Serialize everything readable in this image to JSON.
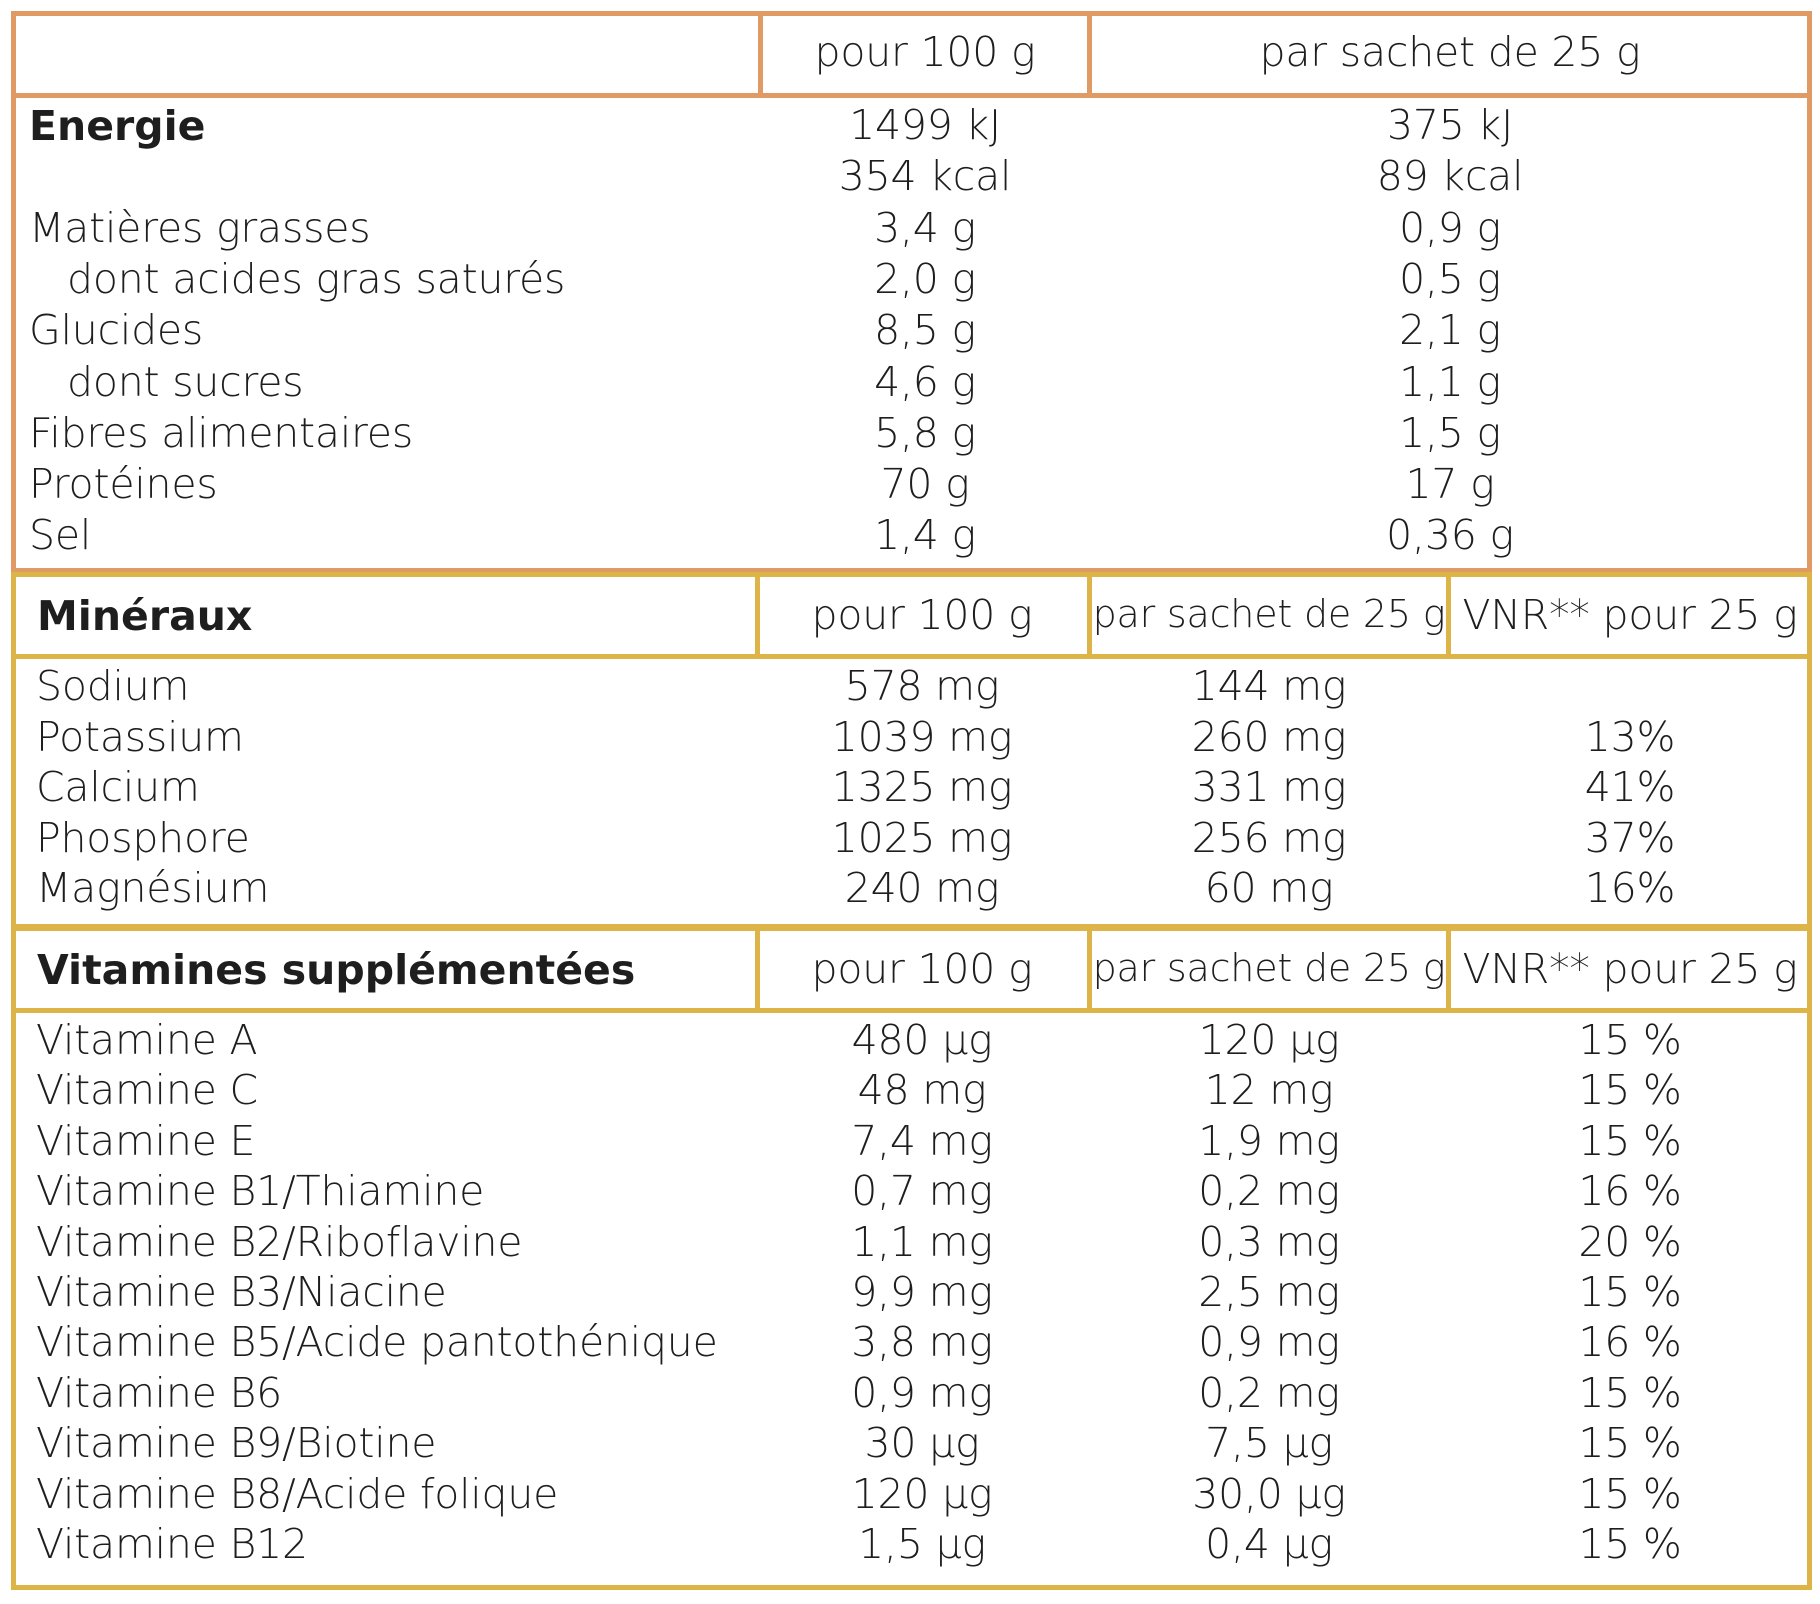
{
  "colors": {
    "orange": "#e09a64",
    "gold": "#ddb447",
    "text": "#1e1e1e"
  },
  "nutrition": {
    "headers": [
      "pour 100 g",
      "par sachet de 25 g"
    ],
    "rows": [
      {
        "label": "Energie",
        "bold": true,
        "v100": "1499 kJ",
        "v25": "375 kJ"
      },
      {
        "label": "",
        "v100": "354 kcal",
        "v25": "89 kcal"
      },
      {
        "label": "Matières grasses",
        "v100": "3,4 g",
        "v25": "0,9 g"
      },
      {
        "label": "dont acides gras saturés",
        "indent": true,
        "v100": "2,0 g",
        "v25": "0,5 g"
      },
      {
        "label": "Glucides",
        "v100": "8,5 g",
        "v25": "2,1 g"
      },
      {
        "label": "dont sucres",
        "indent": true,
        "v100": "4,6 g",
        "v25": "1,1 g"
      },
      {
        "label": "Fibres alimentaires",
        "v100": "5,8 g",
        "v25": "1,5 g"
      },
      {
        "label": "Protéines",
        "v100": "70 g",
        "v25": "17 g"
      },
      {
        "label": "Sel",
        "v100": "1,4 g",
        "v25": "0,36 g"
      }
    ]
  },
  "minerals": {
    "title": "Minéraux",
    "headers": [
      "pour 100 g",
      "par sachet de 25 g",
      "VNR** pour 25 g"
    ],
    "rows": [
      {
        "label": "Sodium",
        "v100": "578 mg",
        "v25": "144 mg",
        "vnr": ""
      },
      {
        "label": "Potassium",
        "v100": "1039 mg",
        "v25": "260 mg",
        "vnr": "13%"
      },
      {
        "label": "Calcium",
        "v100": "1325 mg",
        "v25": "331 mg",
        "vnr": "41%"
      },
      {
        "label": "Phosphore",
        "v100": "1025 mg",
        "v25": "256 mg",
        "vnr": "37%"
      },
      {
        "label": "Magnésium",
        "v100": "240 mg",
        "v25": "60 mg",
        "vnr": "16%"
      }
    ]
  },
  "vitamins": {
    "title": "Vitamines supplémentées",
    "headers": [
      "pour 100 g",
      "par sachet de 25 g",
      "VNR** pour 25 g"
    ],
    "rows": [
      {
        "label": "Vitamine A",
        "v100": "480 µg",
        "v25": "120 µg",
        "vnr": "15 %"
      },
      {
        "label": "Vitamine C",
        "v100": "48 mg",
        "v25": "12 mg",
        "vnr": "15 %"
      },
      {
        "label": "Vitamine E",
        "v100": "7,4 mg",
        "v25": "1,9 mg",
        "vnr": "15 %"
      },
      {
        "label": "Vitamine B1/Thiamine",
        "v100": "0,7 mg",
        "v25": "0,2 mg",
        "vnr": "16 %"
      },
      {
        "label": "Vitamine B2/Riboflavine",
        "v100": "1,1 mg",
        "v25": "0,3 mg",
        "vnr": "20 %"
      },
      {
        "label": "Vitamine B3/Niacine",
        "v100": "9,9 mg",
        "v25": "2,5 mg",
        "vnr": "15 %"
      },
      {
        "label": "Vitamine B5/Acide pantothénique",
        "v100": "3,8 mg",
        "v25": "0,9 mg",
        "vnr": "16 %"
      },
      {
        "label": "Vitamine B6",
        "v100": "0,9 mg",
        "v25": "0,2 mg",
        "vnr": "15 %"
      },
      {
        "label": "Vitamine B9/Biotine",
        "v100": "30 µg",
        "v25": "7,5 µg",
        "vnr": "15 %"
      },
      {
        "label": "Vitamine B8/Acide folique",
        "v100": "120 µg",
        "v25": "30,0 µg",
        "vnr": "15 %"
      },
      {
        "label": "Vitamine B12",
        "v100": "1,5 µg",
        "v25": "0,4 µg",
        "vnr": "15 %"
      }
    ]
  }
}
